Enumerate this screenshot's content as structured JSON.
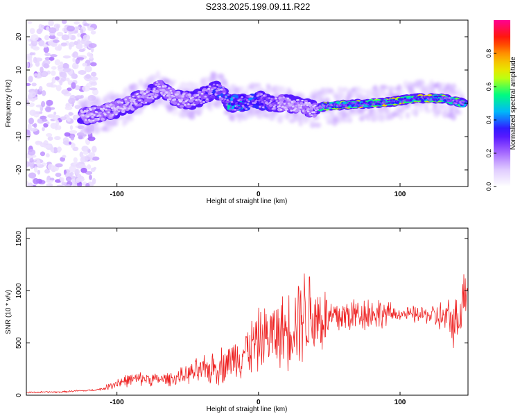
{
  "title": "S233.2025.199.09.11.R22",
  "chart_data": [
    {
      "type": "heatmap",
      "xlabel": "Height of straight line (km)",
      "ylabel": "Frequency (Hz)",
      "xlim": [
        -164,
        148
      ],
      "ylim": [
        -25,
        25
      ],
      "x_ticks": [
        -100,
        0,
        100
      ],
      "y_ticks": [
        -20,
        -10,
        0,
        10,
        20
      ],
      "colorbar": {
        "label": "Normalized spectral amplitude",
        "range": [
          0,
          1
        ],
        "ticks": [
          0.0,
          0.2,
          0.4,
          0.6,
          0.8
        ],
        "colormap": [
          "#ffffff",
          "#dcc6ff",
          "#9a55ff",
          "#3a00ff",
          "#00b4ff",
          "#00ff7a",
          "#dcff00",
          "#ffae00",
          "#ff1a00",
          "#ff0090"
        ]
      },
      "ridge": {
        "x": [
          -125,
          -110,
          -95,
          -85,
          -75,
          -70,
          -65,
          -55,
          -45,
          -35,
          -30,
          -25,
          -20,
          -10,
          0,
          10,
          20,
          30,
          40,
          45,
          60,
          80,
          95,
          110,
          130,
          145
        ],
        "frequency": [
          -4,
          -3,
          -1,
          1,
          3,
          5,
          3,
          1,
          1,
          3,
          4,
          3,
          0,
          0,
          1,
          0,
          0,
          -1,
          -2,
          -1,
          -0.5,
          0,
          0.5,
          1.5,
          1.5,
          0
        ],
        "amplitude": [
          0.3,
          0.3,
          0.3,
          0.35,
          0.35,
          0.35,
          0.3,
          0.3,
          0.35,
          0.4,
          0.45,
          0.4,
          0.6,
          0.55,
          0.5,
          0.4,
          0.3,
          0.35,
          0.3,
          0.7,
          0.8,
          0.8,
          0.85,
          0.85,
          0.8,
          0.6
        ]
      },
      "noise_region_x": [
        -164,
        -115
      ]
    },
    {
      "type": "line",
      "xlabel": "Height of straight line (km)",
      "ylabel": "SNR (10 * v/v)",
      "xlim": [
        -164,
        148
      ],
      "ylim": [
        0,
        1600
      ],
      "x_ticks": [
        -100,
        0,
        100
      ],
      "y_ticks": [
        0,
        500,
        1000,
        1500
      ],
      "line_color": "#ee2222",
      "series": [
        {
          "x": [
            -164,
            -150,
            -140,
            -130,
            -120,
            -110,
            -100,
            -90,
            -80,
            -70,
            -60,
            -50,
            -45,
            -40,
            -35,
            -30,
            -25,
            -20,
            -10,
            0,
            5,
            10,
            20,
            25,
            30,
            35,
            40,
            45,
            50,
            60,
            70,
            80,
            90,
            100,
            110,
            120,
            130,
            140,
            148
          ],
          "values": [
            25,
            30,
            30,
            40,
            45,
            60,
            120,
            150,
            160,
            150,
            160,
            200,
            220,
            230,
            250,
            270,
            290,
            330,
            420,
            520,
            560,
            580,
            620,
            700,
            780,
            780,
            760,
            740,
            730,
            760,
            780,
            790,
            780,
            780,
            770,
            770,
            740,
            700,
            1100
          ],
          "spread": [
            10,
            10,
            10,
            10,
            10,
            15,
            70,
            70,
            80,
            70,
            80,
            100,
            150,
            150,
            180,
            200,
            220,
            200,
            300,
            350,
            350,
            380,
            420,
            500,
            550,
            600,
            500,
            450,
            250,
            220,
            200,
            200,
            150,
            60,
            100,
            100,
            200,
            300,
            300
          ]
        }
      ]
    }
  ]
}
